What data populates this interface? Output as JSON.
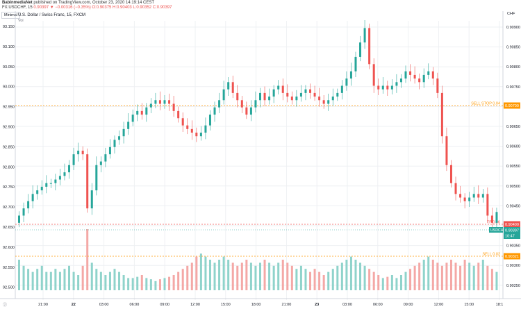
{
  "header": {
    "author": "BabinmediaNet",
    "published": "published on TradingView.com, October 23, 2020 14:19:14 CEST",
    "ticker_line_prefix": "FX:USDCHF, 15",
    "ohlc": "0.90397 ▼ −0.00316 (−0.35%) O:0.90375 H:0.90403 L:0.90352 C:0.90397"
  },
  "chart_header": {
    "symbol_box": "Minimal",
    "title": "U.S. Dollar / Swiss Franc, 15, FXCM",
    "vol_label": "Vol",
    "currency": "CHF"
  },
  "left_axis": {
    "labels": [
      "93.150",
      "93.100",
      "93.050",
      "93.000",
      "92.950",
      "92.900",
      "92.850",
      "92.800",
      "92.750",
      "92.700",
      "92.650",
      "92.600",
      "92.550",
      "92.500"
    ]
  },
  "right_axis": {
    "labels": [
      "0.90900",
      "0.90850",
      "0.90800",
      "0.90750",
      "0.90700",
      "0.90650",
      "0.90600",
      "0.90550",
      "0.90500",
      "0.90450",
      "0.90400",
      "0.90350",
      "0.90300",
      "0.90250"
    ]
  },
  "time_axis": {
    "labels": [
      "21:00",
      "22",
      "03:00",
      "06:00",
      "09:00",
      "12:00",
      "15:00",
      "18:00",
      "21:00",
      "23",
      "03:00",
      "06:00",
      "09:00",
      "12:00",
      "15:00",
      "18:1"
    ]
  },
  "levels": {
    "sell_stop": {
      "label": "SELL STOP 0.04",
      "price": "0.90700",
      "color": "#ff9800"
    },
    "tp": {
      "label": "TP 0.06",
      "price": "0.90400",
      "color": "#ef5350"
    },
    "last": {
      "label": "USDCHF",
      "price": "0.90397",
      "countdown": "10:47",
      "color": "#26a69a"
    },
    "sell": {
      "label": "SELL 0.02",
      "price": "0.90321",
      "color": "#ff9800"
    }
  },
  "colors": {
    "up": "#26a69a",
    "down": "#ef5350",
    "vol_up": "#8fd3cb",
    "vol_down": "#f4a8a6",
    "grid": "#eef0f3"
  },
  "chart_data": {
    "type": "candlestick",
    "symbol": "U.S. Dollar / Swiss Franc, 15, FXCM",
    "price_range": [
      0.9025,
      0.9092
    ],
    "close_path": [
      0.9038,
      0.904,
      0.9042,
      0.9044,
      0.9045,
      0.9046,
      0.9047,
      0.9047,
      0.9048,
      0.9049,
      0.905,
      0.9052,
      0.9055,
      0.9056,
      0.9055,
      0.904,
      0.9045,
      0.9052,
      0.9053,
      0.9055,
      0.9057,
      0.9059,
      0.906,
      0.9062,
      0.9064,
      0.9066,
      0.9067,
      0.9066,
      0.9068,
      0.9069,
      0.907,
      0.9069,
      0.907,
      0.9069,
      0.9067,
      0.9065,
      0.9063,
      0.9062,
      0.9061,
      0.906,
      0.9061,
      0.9063,
      0.9066,
      0.9068,
      0.907,
      0.9073,
      0.9075,
      0.9072,
      0.907,
      0.9068,
      0.9066,
      0.9068,
      0.907,
      0.9072,
      0.907,
      0.9071,
      0.9073,
      0.9074,
      0.9072,
      0.9071,
      0.907,
      0.9071,
      0.9072,
      0.9073,
      0.9072,
      0.9071,
      0.907,
      0.9069,
      0.907,
      0.9071,
      0.9072,
      0.9074,
      0.9076,
      0.9078,
      0.9082,
      0.9086,
      0.909,
      0.908,
      0.9074,
      0.9073,
      0.9074,
      0.9073,
      0.9074,
      0.9075,
      0.9076,
      0.9078,
      0.9077,
      0.9076,
      0.9075,
      0.9077,
      0.9078,
      0.9076,
      0.9072,
      0.906,
      0.9052,
      0.9047,
      0.9044,
      0.9043,
      0.9042,
      0.9043,
      0.9044,
      0.9043,
      0.9044,
      0.9038,
      0.9036,
      0.9039
    ],
    "volume_path": [
      0.5,
      0.4,
      0.35,
      0.3,
      0.35,
      0.4,
      0.3,
      0.3,
      0.35,
      0.3,
      0.35,
      0.4,
      0.3,
      0.25,
      0.4,
      1.0,
      0.45,
      0.35,
      0.3,
      0.25,
      0.3,
      0.35,
      0.3,
      0.25,
      0.2,
      0.2,
      0.22,
      0.25,
      0.2,
      0.18,
      0.15,
      0.18,
      0.2,
      0.22,
      0.25,
      0.3,
      0.35,
      0.4,
      0.45,
      0.55,
      0.6,
      0.55,
      0.5,
      0.45,
      0.5,
      0.55,
      0.5,
      0.45,
      0.4,
      0.45,
      0.5,
      0.45,
      0.4,
      0.45,
      0.5,
      0.45,
      0.4,
      0.45,
      0.5,
      0.45,
      0.4,
      0.35,
      0.4,
      0.35,
      0.3,
      0.35,
      0.3,
      0.25,
      0.3,
      0.35,
      0.4,
      0.45,
      0.5,
      0.55,
      0.5,
      0.45,
      0.4,
      0.35,
      0.3,
      0.25,
      0.2,
      0.22,
      0.25,
      0.2,
      0.25,
      0.3,
      0.35,
      0.4,
      0.45,
      0.5,
      0.55,
      0.5,
      0.45,
      0.4,
      0.45,
      0.5,
      0.45,
      0.4,
      0.5,
      0.45,
      0.4,
      0.45,
      0.5,
      0.4,
      0.35,
      0.3
    ]
  }
}
